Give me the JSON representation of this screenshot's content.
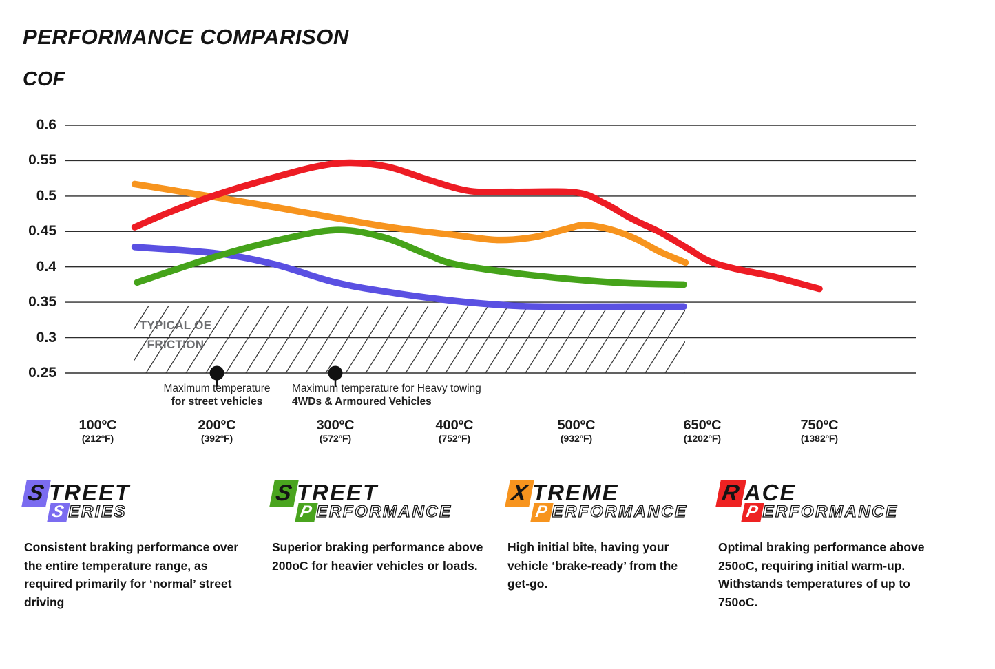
{
  "title": "PERFORMANCE COMPARISON",
  "ylabel": "COF",
  "chart_data": {
    "type": "line",
    "title": "PERFORMANCE COMPARISON",
    "ylabel": "COF",
    "xlabel": "",
    "ylim": [
      0.25,
      0.6
    ],
    "grid": "horizontal",
    "y_ticks": [
      "0.6",
      "0.55",
      "0.5",
      "0.45",
      "0.4",
      "0.35",
      "0.3",
      "0.25"
    ],
    "x_ticks": [
      {
        "label": "100ºC",
        "sub": "(212ºF)"
      },
      {
        "label": "200ºC",
        "sub": "(392ºF)"
      },
      {
        "label": "300ºC",
        "sub": "(572ºF)"
      },
      {
        "label": "400ºC",
        "sub": "(752ºF)"
      },
      {
        "label": "500ºC",
        "sub": "(932ºF)"
      },
      {
        "label": "650ºC",
        "sub": "(1202ºF)"
      },
      {
        "label": "750ºC",
        "sub": "(1382ºF)"
      }
    ],
    "series": [
      {
        "name": "Street Series",
        "color": "#5a50e2",
        "points": [
          [
            131,
            0.428
          ],
          [
            200,
            0.419
          ],
          [
            250,
            0.403
          ],
          [
            300,
            0.378
          ],
          [
            350,
            0.363
          ],
          [
            400,
            0.352
          ],
          [
            440,
            0.346
          ],
          [
            470,
            0.344
          ],
          [
            560,
            0.344
          ],
          [
            628,
            0.344
          ]
        ]
      },
      {
        "name": "Street Performance",
        "color": "#45a31a",
        "points": [
          [
            133,
            0.378
          ],
          [
            200,
            0.415
          ],
          [
            250,
            0.437
          ],
          [
            300,
            0.452
          ],
          [
            340,
            0.442
          ],
          [
            375,
            0.419
          ],
          [
            400,
            0.404
          ],
          [
            450,
            0.391
          ],
          [
            500,
            0.382
          ],
          [
            560,
            0.377
          ],
          [
            628,
            0.375
          ]
        ]
      },
      {
        "name": "Xtreme Performance",
        "color": "#f7941e",
        "points": [
          [
            131,
            0.517
          ],
          [
            200,
            0.498
          ],
          [
            250,
            0.484
          ],
          [
            300,
            0.469
          ],
          [
            350,
            0.455
          ],
          [
            400,
            0.445
          ],
          [
            435,
            0.438
          ],
          [
            465,
            0.442
          ],
          [
            495,
            0.455
          ],
          [
            510,
            0.459
          ],
          [
            540,
            0.453
          ],
          [
            570,
            0.44
          ],
          [
            600,
            0.421
          ],
          [
            630,
            0.406
          ]
        ]
      },
      {
        "name": "Race Performance",
        "color": "#ed1c24",
        "points": [
          [
            131,
            0.456
          ],
          [
            160,
            0.477
          ],
          [
            200,
            0.502
          ],
          [
            250,
            0.527
          ],
          [
            285,
            0.542
          ],
          [
            313,
            0.547
          ],
          [
            345,
            0.541
          ],
          [
            380,
            0.522
          ],
          [
            413,
            0.507
          ],
          [
            450,
            0.506
          ],
          [
            500,
            0.505
          ],
          [
            533,
            0.49
          ],
          [
            566,
            0.468
          ],
          [
            601,
            0.448
          ],
          [
            634,
            0.425
          ],
          [
            656,
            0.408
          ],
          [
            679,
            0.397
          ],
          [
            709,
            0.387
          ],
          [
            732,
            0.377
          ],
          [
            750,
            0.369
          ]
        ]
      }
    ],
    "oe_band": {
      "label_line1": "TYPICAL OE",
      "label_line2": "FRICTION",
      "cof_from": 0.25,
      "cof_to": 0.345
    },
    "annotations": [
      {
        "x_c": 200,
        "line1": "Maximum temperature",
        "line2": "for street vehicles"
      },
      {
        "x_c": 300,
        "line1": "Maximum temperature for Heavy towing",
        "line2": "4WDs & Armoured Vehicles"
      }
    ]
  },
  "legend": {
    "items": [
      {
        "word1": "STREET",
        "word2": "SERIES",
        "color": "#7b6cf0",
        "description": "Consistent braking performance over the entire temperature range, as required primarily for ‘normal’ street driving"
      },
      {
        "word1": "STREET",
        "word2": "PERFORMANCE",
        "color": "#4aa41f",
        "description": "Superior braking performance above 200oC for heavier vehicles or loads."
      },
      {
        "word1": "XTREME",
        "word2": "PERFORMANCE",
        "color": "#f7941e",
        "description": "High initial bite, having your vehicle ‘brake-ready’ from the get-go."
      },
      {
        "word1": "RACE",
        "word2": "PERFORMANCE",
        "color": "#ee2222",
        "description": "Optimal braking performance above 250oC, requiring initial warm-up. Withstands temperatures of up to 750oC."
      }
    ]
  }
}
